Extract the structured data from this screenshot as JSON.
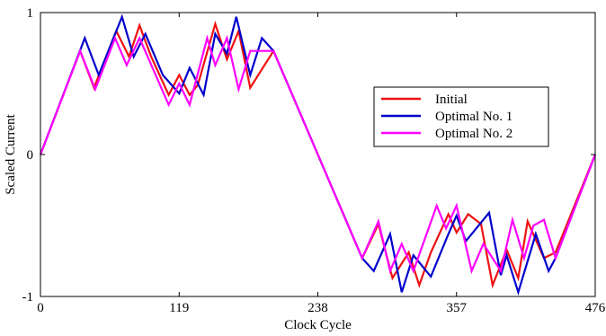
{
  "chart_data": {
    "type": "line",
    "title": "",
    "xlabel": "Clock Cycle",
    "ylabel": "Scaled Current",
    "xlim": [
      0,
      476
    ],
    "ylim": [
      -1,
      1
    ],
    "xticks": [
      0,
      119,
      238,
      357,
      476
    ],
    "xtick_labels": [
      "0",
      "119",
      "238",
      "357",
      "476"
    ],
    "yticks": [
      -1,
      0,
      1
    ],
    "ytick_labels": [
      "-1",
      "0",
      "1"
    ],
    "grid": false,
    "legend_position": "center-right",
    "series": [
      {
        "name": "Initial",
        "color": "#ee1111",
        "x": [
          0,
          34,
          46,
          65,
          76,
          85,
          95,
          110,
          119,
          128,
          135,
          150,
          160,
          170,
          180,
          200,
          238,
          276,
          290,
          302,
          316,
          325,
          335,
          350,
          357,
          367,
          378,
          388,
          400,
          410,
          418,
          432,
          442,
          476
        ],
        "y": [
          0,
          0.73,
          0.47,
          0.87,
          0.69,
          0.91,
          0.69,
          0.42,
          0.56,
          0.42,
          0.49,
          0.92,
          0.67,
          0.87,
          0.47,
          0.73,
          0,
          -0.73,
          -0.49,
          -0.87,
          -0.69,
          -0.92,
          -0.69,
          -0.42,
          -0.55,
          -0.42,
          -0.49,
          -0.92,
          -0.67,
          -0.87,
          -0.47,
          -0.73,
          -0.69,
          0
        ]
      },
      {
        "name": "Optimal No. 1",
        "color": "#0000cc",
        "x": [
          0,
          38,
          50,
          70,
          80,
          90,
          105,
          119,
          128,
          140,
          150,
          160,
          168,
          180,
          190,
          200,
          238,
          276,
          286,
          300,
          310,
          320,
          335,
          350,
          357,
          365,
          385,
          395,
          400,
          410,
          425,
          436,
          442,
          476
        ],
        "y": [
          0,
          0.82,
          0.56,
          0.97,
          0.69,
          0.85,
          0.56,
          0.43,
          0.61,
          0.42,
          0.85,
          0.71,
          0.97,
          0.56,
          0.82,
          0.73,
          0,
          -0.73,
          -0.82,
          -0.56,
          -0.97,
          -0.71,
          -0.86,
          -0.56,
          -0.43,
          -0.61,
          -0.41,
          -0.85,
          -0.71,
          -0.97,
          -0.56,
          -0.82,
          -0.73,
          0
        ]
      },
      {
        "name": "Optimal No. 2",
        "color": "#ff00ff",
        "x": [
          0,
          34,
          47,
          64,
          74,
          85,
          110,
          119,
          128,
          143,
          150,
          160,
          170,
          180,
          200,
          238,
          276,
          290,
          300,
          310,
          320,
          340,
          348,
          357,
          370,
          380,
          395,
          405,
          415,
          423,
          432,
          442,
          476
        ],
        "y": [
          0,
          0.73,
          0.46,
          0.82,
          0.63,
          0.82,
          0.35,
          0.5,
          0.35,
          0.82,
          0.63,
          0.82,
          0.46,
          0.73,
          0.73,
          0,
          -0.73,
          -0.47,
          -0.82,
          -0.63,
          -0.82,
          -0.36,
          -0.52,
          -0.36,
          -0.82,
          -0.63,
          -0.82,
          -0.46,
          -0.73,
          -0.5,
          -0.46,
          -0.73,
          0
        ]
      }
    ]
  }
}
